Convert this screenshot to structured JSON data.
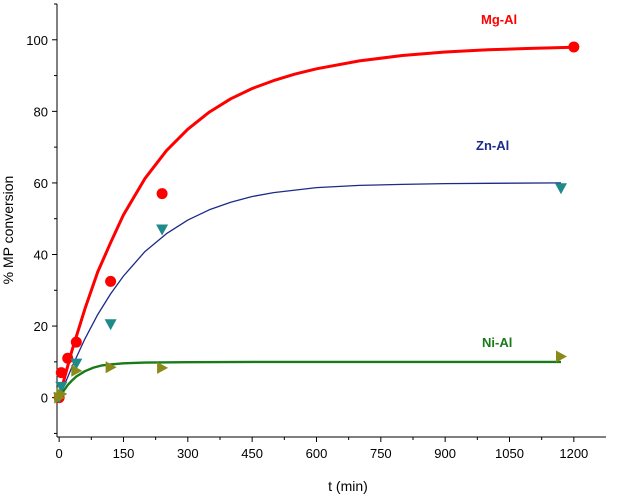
{
  "chart_data": {
    "type": "scatter",
    "title": "",
    "xlabel": "t (min)",
    "ylabel": "% MP conversion",
    "xlim": [
      -5,
      1275
    ],
    "ylim": [
      -11,
      110
    ],
    "xticks": [
      0,
      150,
      300,
      450,
      600,
      750,
      900,
      1050,
      1200
    ],
    "yticks": [
      0,
      20,
      40,
      60,
      80,
      100
    ],
    "grid": false,
    "series": [
      {
        "name": "Mg-Al",
        "color": "#ff0000",
        "marker": "circle",
        "points": [
          [
            0,
            0
          ],
          [
            5,
            7
          ],
          [
            20,
            11
          ],
          [
            40,
            15.5
          ],
          [
            120,
            32.5
          ],
          [
            240,
            57
          ],
          [
            1200,
            98
          ]
        ],
        "fit": [
          [
            0,
            0
          ],
          [
            30,
            13.2
          ],
          [
            60,
            24.8
          ],
          [
            90,
            35.1
          ],
          [
            120,
            43.3
          ],
          [
            150,
            51.1
          ],
          [
            200,
            61.2
          ],
          [
            250,
            69
          ],
          [
            300,
            75
          ],
          [
            350,
            79.8
          ],
          [
            400,
            83.5
          ],
          [
            450,
            86.4
          ],
          [
            500,
            88.6
          ],
          [
            550,
            90.4
          ],
          [
            600,
            91.9
          ],
          [
            700,
            94.1
          ],
          [
            800,
            95.6
          ],
          [
            900,
            96.6
          ],
          [
            1000,
            97.2
          ],
          [
            1100,
            97.6
          ],
          [
            1200,
            97.9
          ]
        ]
      },
      {
        "name": "Zn-Al",
        "color": "#1c2a8a",
        "marker": "triangle-down",
        "points": [
          [
            0,
            0
          ],
          [
            5,
            3
          ],
          [
            40,
            9.5
          ],
          [
            120,
            20.5
          ],
          [
            240,
            47
          ],
          [
            1170,
            58.5
          ]
        ],
        "fit": [
          [
            0,
            0
          ],
          [
            30,
            8.6
          ],
          [
            60,
            16.4
          ],
          [
            90,
            23.2
          ],
          [
            120,
            29
          ],
          [
            150,
            34
          ],
          [
            200,
            40.8
          ],
          [
            250,
            45.8
          ],
          [
            300,
            49.6
          ],
          [
            350,
            52.5
          ],
          [
            400,
            54.6
          ],
          [
            450,
            56.2
          ],
          [
            500,
            57.3
          ],
          [
            600,
            58.7
          ],
          [
            700,
            59.3
          ],
          [
            800,
            59.6
          ],
          [
            900,
            59.8
          ],
          [
            1000,
            59.9
          ],
          [
            1170,
            60
          ]
        ]
      },
      {
        "name": "Ni-Al",
        "color": "#1a7a1a",
        "marker": "triangle-right",
        "marker_color": "#8a8a1a",
        "points": [
          [
            0,
            0
          ],
          [
            5,
            1
          ],
          [
            40,
            7.5
          ],
          [
            120,
            8.5
          ],
          [
            240,
            8.3
          ],
          [
            1170,
            11.5
          ]
        ],
        "fit": [
          [
            0,
            0
          ],
          [
            10,
            1.8
          ],
          [
            20,
            3.5
          ],
          [
            30,
            4.8
          ],
          [
            40,
            5.9
          ],
          [
            60,
            7.4
          ],
          [
            80,
            8.4
          ],
          [
            100,
            9
          ],
          [
            120,
            9.3
          ],
          [
            150,
            9.6
          ],
          [
            200,
            9.8
          ],
          [
            300,
            9.9
          ],
          [
            500,
            10
          ],
          [
            800,
            10
          ],
          [
            1170,
            10
          ]
        ]
      }
    ]
  }
}
